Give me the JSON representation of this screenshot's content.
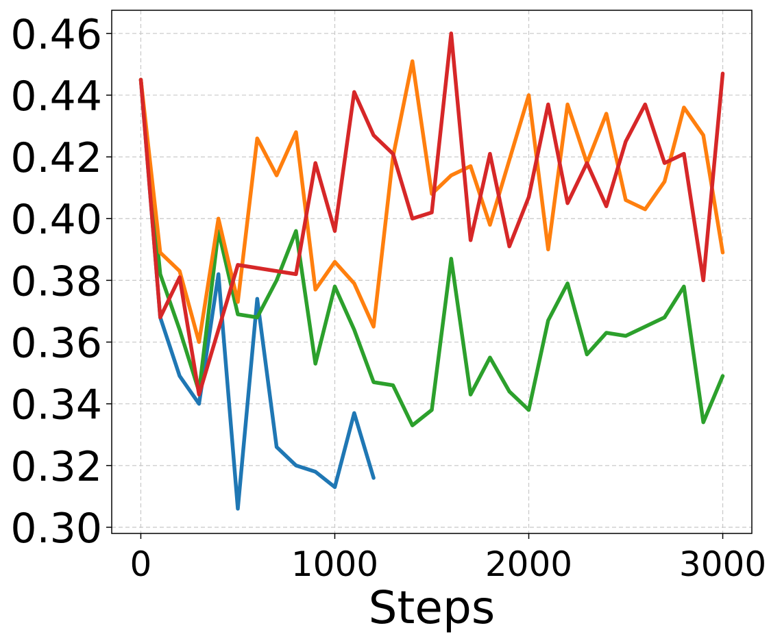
{
  "chart_data": {
    "type": "line",
    "title": "",
    "xlabel": "Steps",
    "ylabel": "",
    "xlim": [
      -150,
      3150
    ],
    "ylim": [
      0.298,
      0.4675
    ],
    "xticks": [
      0,
      1000,
      2000,
      3000
    ],
    "xtick_labels": [
      "0",
      "1000",
      "2000",
      "3000"
    ],
    "yticks": [
      0.3,
      0.32,
      0.34,
      0.36,
      0.38,
      0.4,
      0.42,
      0.44,
      0.46
    ],
    "ytick_labels": [
      "0.30",
      "0.32",
      "0.34",
      "0.36",
      "0.38",
      "0.40",
      "0.42",
      "0.44",
      "0.46"
    ],
    "grid": true,
    "legend": "none",
    "series": [
      {
        "color": "#1f77b4",
        "x": [
          0,
          100,
          200,
          300,
          400,
          500,
          600,
          700,
          800,
          900,
          1000,
          1100,
          1200
        ],
        "y": [
          0.445,
          0.368,
          0.349,
          0.34,
          0.382,
          0.306,
          0.374,
          0.326,
          0.32,
          0.318,
          0.313,
          0.337,
          0.316
        ]
      },
      {
        "color": "#2ca02c",
        "x": [
          0,
          100,
          200,
          300,
          400,
          500,
          600,
          700,
          800,
          900,
          1000,
          1100,
          1200,
          1300,
          1400,
          1500,
          1600,
          1700,
          1800,
          1900,
          2000,
          2100,
          2200,
          2300,
          2400,
          2500,
          2600,
          2700,
          2800,
          2900,
          3000
        ],
        "y": [
          0.445,
          0.382,
          0.364,
          0.344,
          0.396,
          0.369,
          0.368,
          0.38,
          0.396,
          0.353,
          0.378,
          0.364,
          0.347,
          0.346,
          0.333,
          0.338,
          0.387,
          0.343,
          0.355,
          0.344,
          0.338,
          0.367,
          0.379,
          0.356,
          0.363,
          0.362,
          0.365,
          0.368,
          0.378,
          0.334,
          0.349
        ]
      },
      {
        "color": "#ff7f0e",
        "x": [
          0,
          100,
          200,
          300,
          400,
          500,
          600,
          700,
          800,
          900,
          1000,
          1100,
          1200,
          1300,
          1400,
          1500,
          1600,
          1700,
          1800,
          1900,
          2000,
          2100,
          2200,
          2300,
          2400,
          2500,
          2600,
          2700,
          2800,
          2900,
          3000
        ],
        "y": [
          0.445,
          0.389,
          0.383,
          0.36,
          0.4,
          0.373,
          0.426,
          0.414,
          0.428,
          0.377,
          0.386,
          0.379,
          0.365,
          0.42,
          0.451,
          0.408,
          0.414,
          0.417,
          0.398,
          0.419,
          0.44,
          0.39,
          0.437,
          0.418,
          0.434,
          0.406,
          0.403,
          0.412,
          0.436,
          0.427,
          0.389
        ]
      },
      {
        "color": "#d62728",
        "x": [
          0,
          100,
          200,
          300,
          400,
          500,
          600,
          700,
          800,
          900,
          1000,
          1100,
          1200,
          1300,
          1400,
          1500,
          1600,
          1700,
          1800,
          1900,
          2000,
          2100,
          2200,
          2300,
          2400,
          2500,
          2600,
          2700,
          2800,
          2900,
          3000
        ],
        "y": [
          0.445,
          0.368,
          0.381,
          0.343,
          0.364,
          0.385,
          0.384,
          0.383,
          0.382,
          0.418,
          0.396,
          0.441,
          0.427,
          0.421,
          0.4,
          0.402,
          0.46,
          0.393,
          0.421,
          0.391,
          0.407,
          0.437,
          0.405,
          0.418,
          0.404,
          0.425,
          0.437,
          0.418,
          0.421,
          0.38,
          0.447
        ]
      }
    ]
  }
}
